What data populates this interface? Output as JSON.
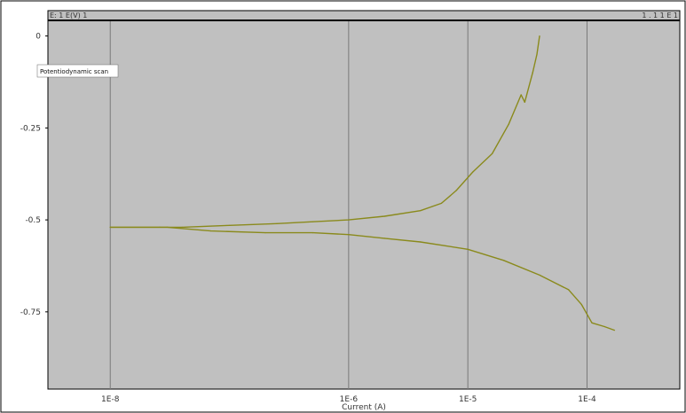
{
  "header": {
    "left_text": "E: 1 E(V) 1",
    "right_text": "1 . 1 1 E 1"
  },
  "legend": {
    "label": "Potentiodynamic scan"
  },
  "colors": {
    "plot_bg": "#c0c0c0",
    "frame": "#000000",
    "grid": "#7a7a7a",
    "series": "#8a8a1c"
  },
  "chart_data": {
    "type": "line",
    "title": "",
    "xlabel": "Current (A)",
    "ylabel": "",
    "xscale": "log",
    "xlim": [
      3e-09,
      0.0006
    ],
    "ylim": [
      -0.96,
      0.04
    ],
    "xticks": [
      {
        "value": 1e-08,
        "label": "1E-8"
      },
      {
        "value": 1e-06,
        "label": "1E-6"
      },
      {
        "value": 1e-05,
        "label": "1E-5"
      },
      {
        "value": 0.0001,
        "label": "1E-4"
      }
    ],
    "yticks": [
      {
        "value": 0.0,
        "label": "0"
      },
      {
        "value": -0.25,
        "label": "-0.25"
      },
      {
        "value": -0.5,
        "label": "-0.5"
      },
      {
        "value": -0.75,
        "label": "-0.75"
      }
    ],
    "grid": true,
    "legend_position": "top-left",
    "series": [
      {
        "name": "",
        "x": [
          1e-08,
          2.6e-08,
          4e-08,
          1e-07,
          2.5e-07,
          5e-07,
          1e-06,
          2e-06,
          4e-06,
          6e-06,
          8e-06,
          1.1e-05,
          1.6e-05,
          2.2e-05,
          2.8e-05,
          3e-05,
          3.5e-05,
          3.8e-05,
          4e-05
        ],
        "y": [
          -0.52,
          -0.52,
          -0.52,
          -0.515,
          -0.51,
          -0.505,
          -0.5,
          -0.49,
          -0.475,
          -0.455,
          -0.42,
          -0.37,
          -0.32,
          -0.24,
          -0.16,
          -0.18,
          -0.1,
          -0.05,
          0.0
        ]
      },
      {
        "name": "",
        "x": [
          1e-08,
          3e-08,
          7e-08,
          2e-07,
          5e-07,
          1e-06,
          2e-06,
          4e-06,
          1e-05,
          2e-05,
          4e-05,
          7e-05,
          9e-05,
          0.00011,
          0.00014,
          0.00017
        ],
        "y": [
          -0.52,
          -0.52,
          -0.53,
          -0.535,
          -0.535,
          -0.54,
          -0.55,
          -0.56,
          -0.58,
          -0.61,
          -0.65,
          -0.69,
          -0.73,
          -0.78,
          -0.79,
          -0.8
        ]
      }
    ]
  }
}
